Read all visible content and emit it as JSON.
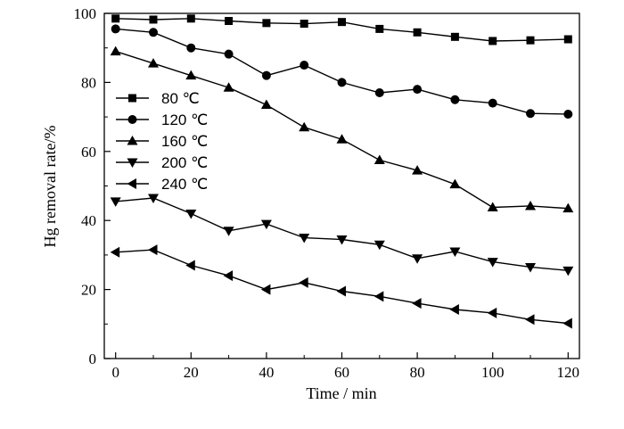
{
  "chart_data": {
    "type": "line",
    "xlabel": "Time / min",
    "ylabel": "Hg removal rate/%",
    "xlim": [
      -3,
      123
    ],
    "ylim": [
      0,
      100
    ],
    "xticks": [
      0,
      20,
      40,
      60,
      80,
      100,
      120
    ],
    "yticks": [
      0,
      20,
      40,
      60,
      80,
      100
    ],
    "xtick_labels": [
      "0",
      "20",
      "40",
      "60",
      "80",
      "100",
      "120"
    ],
    "ytick_labels": [
      "0",
      "20",
      "40",
      "60",
      "80",
      "100"
    ],
    "x": [
      0,
      10,
      20,
      30,
      40,
      50,
      60,
      70,
      80,
      90,
      100,
      110,
      120
    ],
    "grid": false,
    "legend_position": "left",
    "series": [
      {
        "name": "80 ℃",
        "marker": "square",
        "values": [
          98.5,
          98.2,
          98.5,
          97.8,
          97.2,
          97.0,
          97.5,
          95.5,
          94.5,
          93.2,
          92.0,
          92.2,
          92.5
        ]
      },
      {
        "name": "120 ℃",
        "marker": "circle",
        "values": [
          95.5,
          94.5,
          90.0,
          88.2,
          82.0,
          85.0,
          80.0,
          77.0,
          78.0,
          75.0,
          74.0,
          71.0,
          70.8
        ]
      },
      {
        "name": "160 ℃",
        "marker": "triangle-up",
        "values": [
          89.0,
          85.5,
          82.0,
          78.5,
          73.5,
          67.0,
          63.5,
          57.5,
          54.5,
          50.5,
          43.8,
          44.2,
          43.5
        ]
      },
      {
        "name": "200 ℃",
        "marker": "triangle-down",
        "values": [
          45.5,
          46.5,
          42.0,
          37.0,
          39.0,
          35.0,
          34.5,
          33.0,
          29.0,
          31.0,
          28.0,
          26.5,
          25.5
        ]
      },
      {
        "name": "240 ℃",
        "marker": "triangle-left",
        "values": [
          30.8,
          31.5,
          27.0,
          24.0,
          20.0,
          22.0,
          19.5,
          18.0,
          16.0,
          14.2,
          13.2,
          11.3,
          10.2
        ]
      }
    ]
  }
}
